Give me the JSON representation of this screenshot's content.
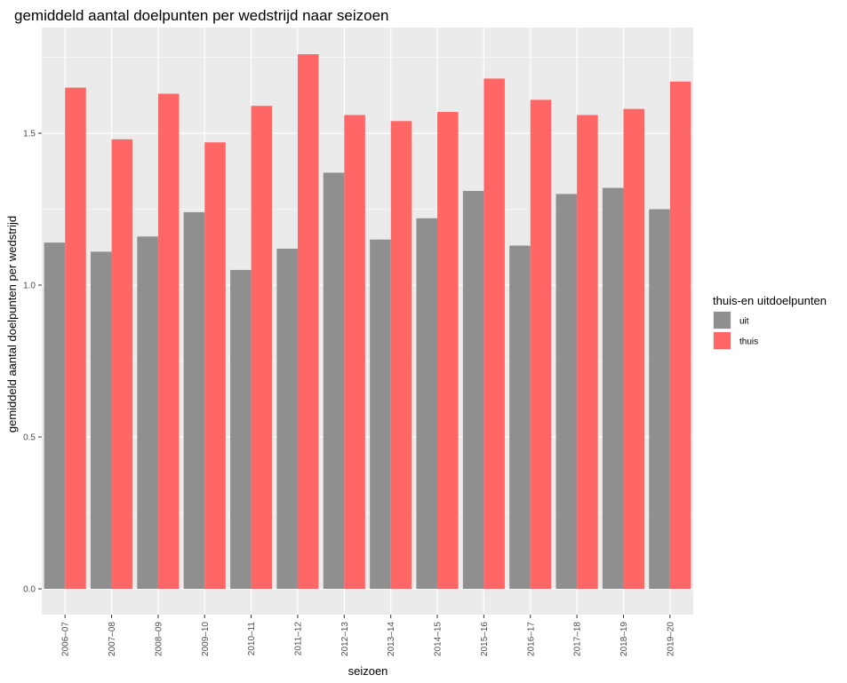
{
  "chart_data": {
    "type": "bar",
    "title": "gemiddeld aantal doelpunten per wedstrijd naar seizoen",
    "xlabel": "seizoen",
    "ylabel": "gemiddeld aantal doelpunten per wedstrijd",
    "categories": [
      "2006–07",
      "2007–08",
      "2008–09",
      "2009–10",
      "2010–11",
      "2011–12",
      "2012–13",
      "2013–14",
      "2014–15",
      "2015–16",
      "2016–17",
      "2017–18",
      "2018–19",
      "2019–20"
    ],
    "series": [
      {
        "name": "uit",
        "color": "#8F8F8F",
        "values": [
          1.14,
          1.11,
          1.16,
          1.24,
          1.05,
          1.12,
          1.37,
          1.15,
          1.22,
          1.31,
          1.13,
          1.3,
          1.32,
          1.25
        ]
      },
      {
        "name": "thuis",
        "color": "#FF6666",
        "values": [
          1.65,
          1.48,
          1.63,
          1.47,
          1.59,
          1.76,
          1.56,
          1.54,
          1.57,
          1.68,
          1.61,
          1.56,
          1.58,
          1.67
        ]
      }
    ],
    "ylim": [
      -0.05,
      1.85
    ],
    "yticks": [
      "0.0",
      "0.5",
      "1.0",
      "1.5"
    ],
    "ytick_values": [
      0,
      0.5,
      1.0,
      1.5
    ],
    "legend": {
      "title": "thuis-en uitdoelpunten",
      "position": "right"
    },
    "grid": true,
    "background": "#EBEBEB"
  }
}
